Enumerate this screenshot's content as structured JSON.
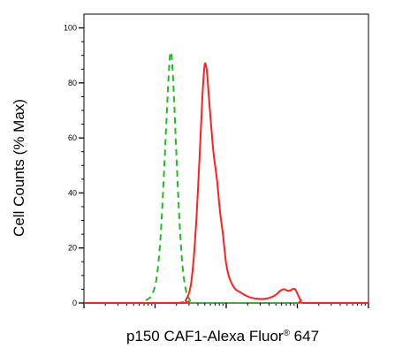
{
  "chart_data": {
    "type": "line",
    "title": "",
    "xlabel": "p150 CAF1-Alexa Fluor",
    "xlabel_mark": "®",
    "xlabel_suffix": " 647",
    "ylabel": "Cell Counts (% Max)",
    "x_scale": "log",
    "xlim": [
      10,
      100000
    ],
    "ylim": [
      0,
      105
    ],
    "yticks": [
      0,
      20,
      40,
      60,
      80,
      100
    ],
    "xtick_labels": [],
    "grid": false,
    "legend": "none",
    "series": [
      {
        "color": "#22bb22",
        "dash": "dashed",
        "points": [
          [
            10,
            0
          ],
          [
            60,
            0
          ],
          [
            75,
            1
          ],
          [
            90,
            3
          ],
          [
            105,
            9
          ],
          [
            120,
            25
          ],
          [
            135,
            50
          ],
          [
            148,
            72
          ],
          [
            158,
            86
          ],
          [
            165,
            91
          ],
          [
            172,
            89
          ],
          [
            182,
            78
          ],
          [
            195,
            60
          ],
          [
            215,
            35
          ],
          [
            240,
            15
          ],
          [
            270,
            5
          ],
          [
            310,
            1
          ],
          [
            360,
            0
          ],
          [
            100000,
            0
          ]
        ]
      },
      {
        "color": "#ff2020",
        "dash": "solid",
        "points": [
          [
            10,
            0
          ],
          [
            230,
            0
          ],
          [
            270,
            1
          ],
          [
            320,
            7
          ],
          [
            370,
            25
          ],
          [
            420,
            52
          ],
          [
            460,
            74
          ],
          [
            490,
            85
          ],
          [
            510,
            87
          ],
          [
            540,
            83
          ],
          [
            590,
            70
          ],
          [
            660,
            55
          ],
          [
            740,
            45
          ],
          [
            820,
            33
          ],
          [
            900,
            25
          ],
          [
            990,
            15
          ],
          [
            1080,
            10
          ],
          [
            1200,
            7
          ],
          [
            1350,
            5
          ],
          [
            1550,
            4
          ],
          [
            1800,
            3
          ],
          [
            2200,
            2
          ],
          [
            2800,
            1.5
          ],
          [
            3500,
            1.5
          ],
          [
            4200,
            2
          ],
          [
            5000,
            3
          ],
          [
            5800,
            4.5
          ],
          [
            6500,
            5
          ],
          [
            7200,
            4.5
          ],
          [
            7900,
            4.5
          ],
          [
            8500,
            5
          ],
          [
            9300,
            5
          ],
          [
            10200,
            3
          ],
          [
            11200,
            1
          ],
          [
            13000,
            0
          ],
          [
            100000,
            0
          ]
        ]
      }
    ]
  }
}
